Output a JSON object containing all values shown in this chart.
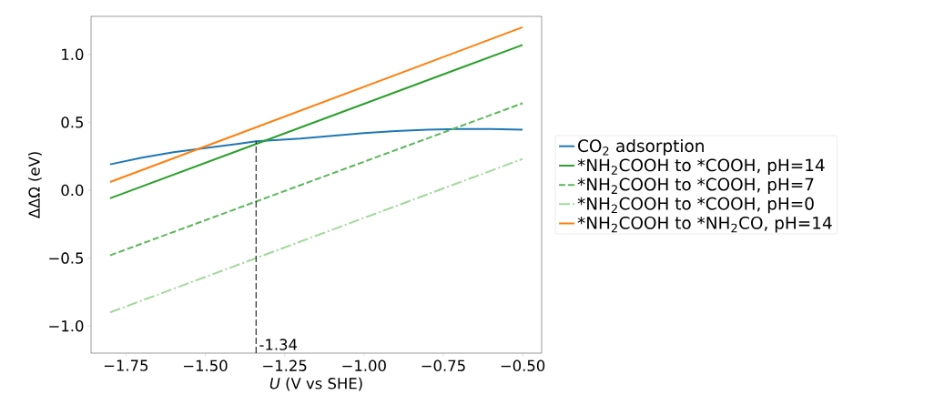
{
  "chart_data": {
    "type": "line",
    "xlabel": "*U* (V vs SHE)",
    "ylabel": "ΔΔΩ (eV)",
    "xlim": [
      -1.86,
      -0.44
    ],
    "ylim": [
      -1.2,
      1.28
    ],
    "xticks": [
      {
        "value": -1.75,
        "label": "−1.75"
      },
      {
        "value": -1.5,
        "label": "−1.50"
      },
      {
        "value": -1.25,
        "label": "−1.25"
      },
      {
        "value": -1.0,
        "label": "−1.00"
      },
      {
        "value": -0.75,
        "label": "−0.75"
      },
      {
        "value": -0.5,
        "label": "−0.50"
      }
    ],
    "yticks": [
      {
        "value": -1.0,
        "label": "−1.0"
      },
      {
        "value": -0.5,
        "label": "−0.5"
      },
      {
        "value": 0.0,
        "label": "0.0"
      },
      {
        "value": 0.5,
        "label": "0.5"
      },
      {
        "value": 1.0,
        "label": "1.0"
      }
    ],
    "series": [
      {
        "name": "CO$_{2}$ adsorption",
        "color": "#1f77b4",
        "line_style": "solid",
        "x": [
          -1.8,
          -1.7,
          -1.6,
          -1.5,
          -1.4,
          -1.34,
          -1.2,
          -1.1,
          -1.0,
          -0.9,
          -0.8,
          -0.7,
          -0.6,
          -0.5
        ],
        "values": [
          0.19,
          0.24,
          0.28,
          0.31,
          0.34,
          0.36,
          0.38,
          0.4,
          0.42,
          0.435,
          0.445,
          0.45,
          0.45,
          0.445
        ]
      },
      {
        "name": "*NH$_{2}$COOH to *COOH, pH=14",
        "color": "#2ca02c",
        "line_style": "solid",
        "x": [
          -1.8,
          -0.5
        ],
        "values": [
          -0.06,
          1.07
        ]
      },
      {
        "name": "*NH$_{2}$COOH to *COOH, pH=7",
        "color": "#5cb85c",
        "line_style": "dashed",
        "x": [
          -1.8,
          -0.5
        ],
        "values": [
          -0.48,
          0.64
        ]
      },
      {
        "name": "*NH$_{2}$COOH to *COOH, pH=0",
        "color": "#a1d99b",
        "line_style": "dashdot",
        "x": [
          -1.8,
          -0.5
        ],
        "values": [
          -0.9,
          0.23
        ]
      },
      {
        "name": "*NH$_{2}$COOH to *NH$_{2}$CO, pH=14",
        "color": "#ff7f0e",
        "line_style": "solid",
        "x": [
          -1.8,
          -0.5
        ],
        "values": [
          0.06,
          1.2
        ]
      }
    ],
    "ref_lines": [
      {
        "axis": "x",
        "value": -1.34,
        "label": "-1.34",
        "color": "#000000",
        "line_style": "dashed"
      }
    ],
    "legend": "right",
    "marker": "none",
    "grid": false
  }
}
